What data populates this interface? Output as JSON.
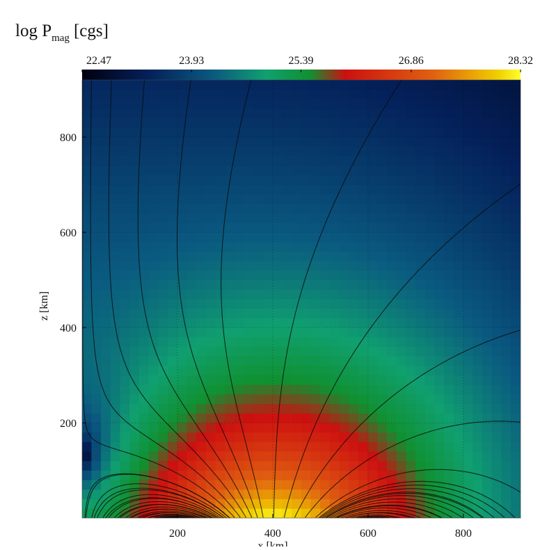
{
  "chart_data": {
    "type": "heatmap",
    "title": "log P",
    "title_subscript": "mag",
    "title_unit": "[cgs]",
    "xlabel": "x [km]",
    "ylabel": "z [km]",
    "xlim": [
      0,
      920
    ],
    "ylim": [
      0,
      920
    ],
    "xticks": [
      200,
      400,
      600,
      800
    ],
    "yticks": [
      200,
      400,
      600,
      800
    ],
    "grid": true,
    "colorbar": {
      "lim": [
        22.47,
        28.32
      ],
      "ticks": [
        22.47,
        23.93,
        25.39,
        26.86,
        28.32
      ]
    }
  }
}
